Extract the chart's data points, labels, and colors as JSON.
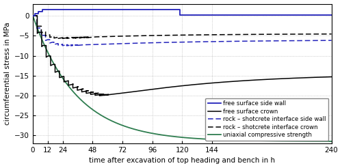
{
  "xlabel": "time after excavation of top heading and bench in h",
  "ylabel": "circumferential stress in MPa",
  "xlim": [
    0,
    240
  ],
  "ylim": [
    -32,
    3
  ],
  "yticks": [
    0,
    -5,
    -10,
    -15,
    -20,
    -25,
    -30
  ],
  "xticks": [
    0,
    12,
    24,
    48,
    72,
    96,
    120,
    144,
    240
  ],
  "colors": {
    "blue": "#2222bb",
    "black": "#000000",
    "green": "#2e7d4f"
  },
  "legend": [
    "free surface side wall",
    "free surface crown",
    "rock – shotcrete interface side wall",
    "rock – shotcrete interface crown",
    "uniaxial compressive strength"
  ]
}
